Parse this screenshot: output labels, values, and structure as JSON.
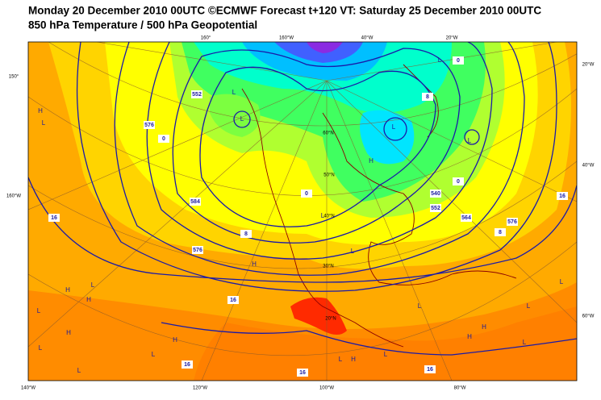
{
  "header": {
    "line1": "Monday 20 December 2010 00UTC ©ECMWF Forecast t+120 VT: Saturday 25 December 2010 00UTC",
    "line2": "850 hPa Temperature / 500 hPa Geopotential"
  },
  "map": {
    "edge_labels": [
      "160°",
      "160°W",
      "40°W",
      "20°W",
      "20°W",
      "40°W",
      "60°W",
      "150°",
      "160°W",
      "140°W",
      "120°W",
      "100°W",
      "80°W"
    ],
    "inner_labels": [
      "60°N",
      "50°N",
      "40°N",
      "30°N",
      "20°N"
    ],
    "contour_labels": [
      "552",
      "576",
      "0",
      "16",
      "8",
      "576",
      "540",
      "552",
      "564",
      "576",
      "8",
      "16",
      "0",
      "16",
      "16",
      "16",
      "16",
      "0",
      "8",
      "0",
      "584"
    ],
    "pressure_centers": [
      "L",
      "L",
      "H",
      "L",
      "L",
      "L",
      "L",
      "H",
      "L",
      "L",
      "H",
      "H",
      "L",
      "H",
      "L",
      "H",
      "L",
      "H",
      "L",
      "L",
      "L",
      "H",
      "L",
      "L",
      "L",
      "H",
      "H",
      "L",
      "L"
    ]
  }
}
